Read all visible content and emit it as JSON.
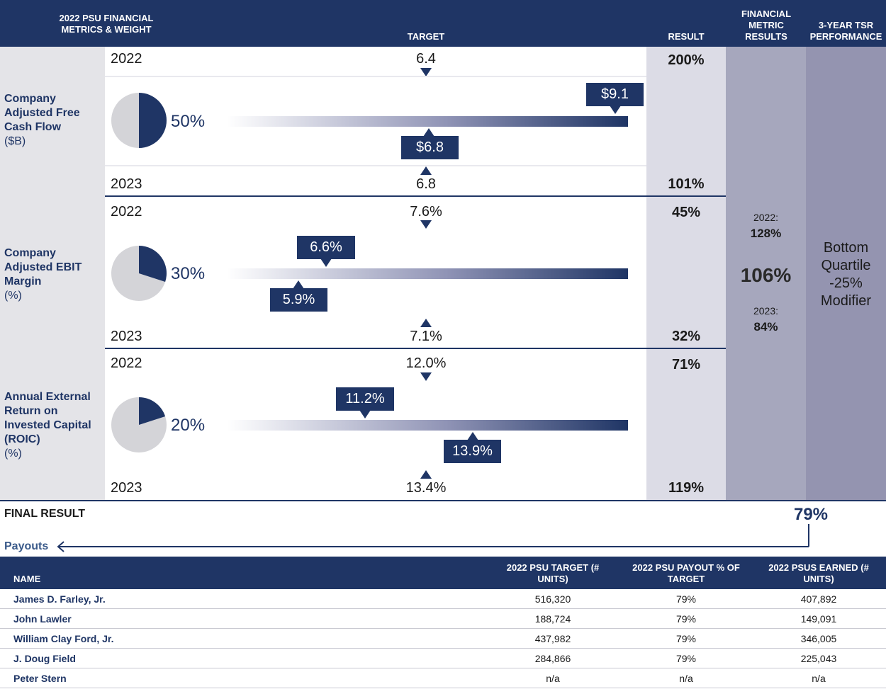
{
  "header": {
    "metrics_label": "2022 PSU FINANCIAL METRICS & WEIGHT",
    "target_label": "TARGET",
    "result_label": "RESULT",
    "financial_label": "FINANCIAL METRIC RESULTS",
    "tsr_label": "3-YEAR TSR PERFORMANCE"
  },
  "chart_data": {
    "type": "table",
    "title": "2022 PSU Financial Metrics",
    "metrics": [
      {
        "name": "Company Adjusted Free Cash Flow",
        "unit": "($B)",
        "weight_label": "50%",
        "weight": 50,
        "year1": "2022",
        "target1": "6.4",
        "result1": "200%",
        "year2": "2023",
        "target2": "6.8",
        "result2": "101%",
        "actual1": "$9.1",
        "actual1_value": 9.1,
        "actual2": "$6.8",
        "actual2_value": 6.8
      },
      {
        "name": "Company Adjusted EBIT Margin",
        "unit": "(%)",
        "weight_label": "30%",
        "weight": 30,
        "year1": "2022",
        "target1": "7.6%",
        "result1": "45%",
        "year2": "2023",
        "target2": "7.1%",
        "result2": "32%",
        "actual1": "6.6%",
        "actual1_value": 6.6,
        "actual2": "5.9%",
        "actual2_value": 5.9
      },
      {
        "name": "Annual External Return on Invested Capital (ROIC)",
        "unit": "(%)",
        "weight_label": "20%",
        "weight": 20,
        "year1": "2022",
        "target1": "12.0%",
        "result1": "71%",
        "year2": "2023",
        "target2": "13.4%",
        "result2": "119%",
        "actual1": "11.2%",
        "actual1_value": 11.2,
        "actual2": "13.9%",
        "actual2_value": 13.9
      }
    ],
    "financial": {
      "y1_label": "2022:",
      "y1_value": "128%",
      "combined": "106%",
      "y2_label": "2023:",
      "y2_value": "84%"
    },
    "tsr": {
      "text": "Bottom Quartile -25% Modifier"
    }
  },
  "final": {
    "label": "FINAL RESULT",
    "value": "79%"
  },
  "payouts_label": "Payouts",
  "table": {
    "headers": [
      "NAME",
      "2022 PSU TARGET (# UNITS)",
      "2022 PSU PAYOUT % OF TARGET",
      "2022 PSUS EARNED (# UNITS)"
    ],
    "rows": [
      [
        "James D. Farley, Jr.",
        "516,320",
        "79%",
        "407,892"
      ],
      [
        "John Lawler",
        "188,724",
        "79%",
        "149,091"
      ],
      [
        "William Clay Ford, Jr.",
        "437,982",
        "79%",
        "346,005"
      ],
      [
        "J. Doug Field",
        "284,866",
        "79%",
        "225,043"
      ],
      [
        "Peter Stern",
        "n/a",
        "n/a",
        "n/a"
      ]
    ]
  },
  "colors": {
    "navy": "#1f3565",
    "pie_gray": "#d4d4d8"
  }
}
